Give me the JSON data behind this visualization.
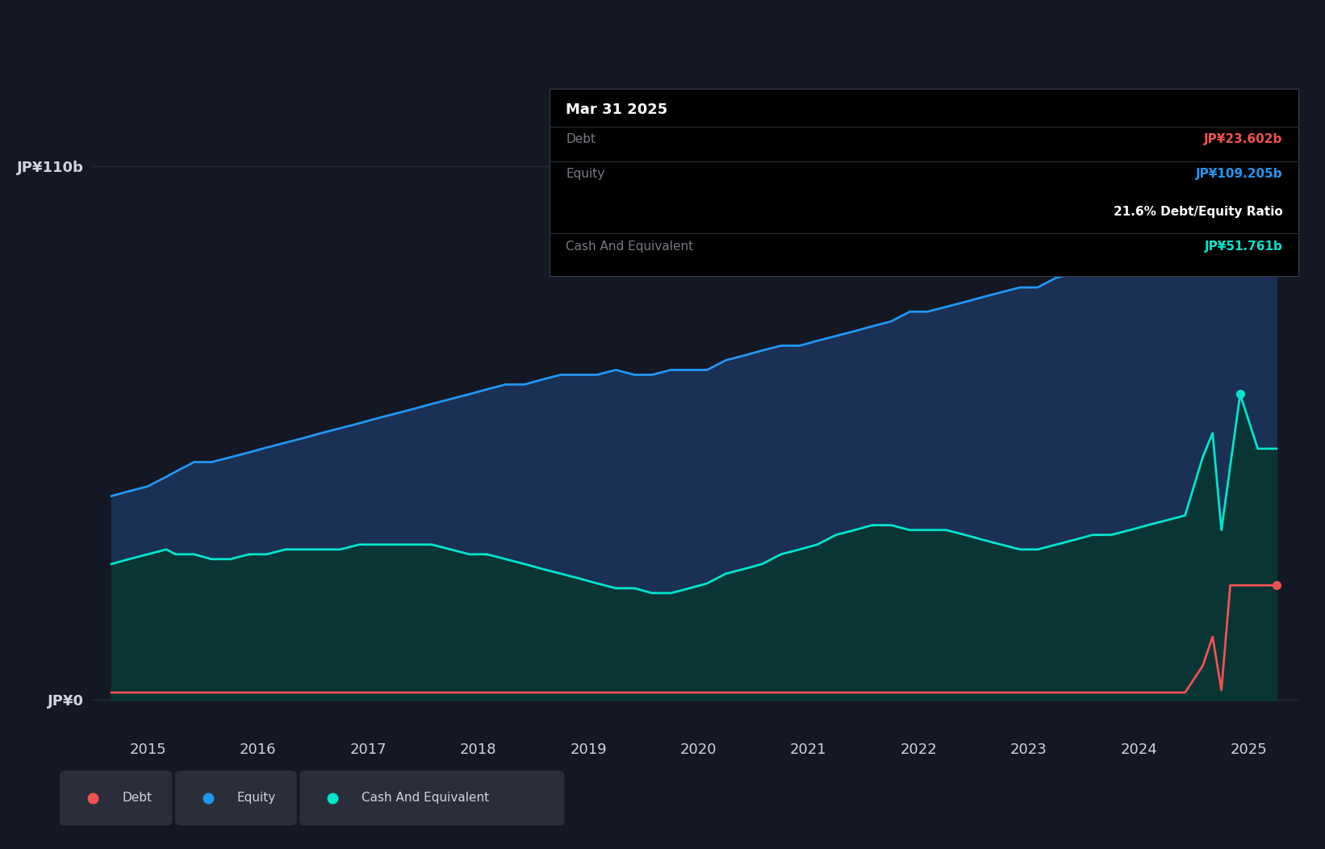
{
  "background_color": "#141824",
  "plot_bg_color": "#141824",
  "tooltip_bg": "#000000",
  "tooltip_border": "#3a3e4a",
  "debt_color": "#ef5350",
  "equity_color": "#2196f3",
  "cash_color": "#00e5cc",
  "equity_fill_color": "#1a3055",
  "cash_fill_color": "#0a3535",
  "grid_color": "#2a2e3a",
  "text_color_primary": "#d1d4dc",
  "text_color_secondary": "#787b86",
  "legend_bg": "#2a2e3a",
  "tooltip": {
    "date": "Mar 31 2025",
    "debt_label": "Debt",
    "debt_value": "JP¥23.602b",
    "equity_label": "Equity",
    "equity_value": "JP¥109.205b",
    "ratio_text": "21.6% Debt/Equity Ratio",
    "cash_label": "Cash And Equivalent",
    "cash_value": "JP¥51.761b"
  },
  "ytick_labels": [
    "JP¥0",
    "JP¥110b"
  ],
  "ytick_values": [
    0,
    110
  ],
  "xlim_start": 2014.5,
  "xlim_end": 2025.45,
  "ylim_min": -8,
  "ylim_max": 118,
  "equity_data_x": [
    2014.67,
    2014.83,
    2015.0,
    2015.17,
    2015.25,
    2015.42,
    2015.58,
    2015.75,
    2015.92,
    2016.08,
    2016.25,
    2016.42,
    2016.58,
    2016.75,
    2016.92,
    2017.08,
    2017.25,
    2017.42,
    2017.58,
    2017.75,
    2017.92,
    2018.08,
    2018.25,
    2018.42,
    2018.58,
    2018.75,
    2018.92,
    2019.08,
    2019.25,
    2019.42,
    2019.58,
    2019.75,
    2019.92,
    2020.08,
    2020.25,
    2020.42,
    2020.58,
    2020.75,
    2020.92,
    2021.08,
    2021.25,
    2021.42,
    2021.58,
    2021.75,
    2021.92,
    2022.08,
    2022.25,
    2022.42,
    2022.58,
    2022.75,
    2022.92,
    2023.08,
    2023.25,
    2023.42,
    2023.58,
    2023.75,
    2023.92,
    2024.08,
    2024.25,
    2024.42,
    2024.58,
    2024.75,
    2024.92,
    2025.08,
    2025.25
  ],
  "equity_data_y": [
    42,
    43,
    44,
    46,
    47,
    49,
    49,
    50,
    51,
    52,
    53,
    54,
    55,
    56,
    57,
    58,
    59,
    60,
    61,
    62,
    63,
    64,
    65,
    65,
    66,
    67,
    67,
    67,
    68,
    67,
    67,
    68,
    68,
    68,
    70,
    71,
    72,
    73,
    73,
    74,
    75,
    76,
    77,
    78,
    80,
    80,
    81,
    82,
    83,
    84,
    85,
    85,
    87,
    88,
    89,
    90,
    91,
    92,
    93,
    95,
    97,
    100,
    103,
    109,
    109.205
  ],
  "debt_data_x": [
    2014.67,
    2014.83,
    2015.0,
    2015.17,
    2015.25,
    2015.42,
    2015.58,
    2015.75,
    2015.92,
    2016.08,
    2016.25,
    2016.42,
    2016.58,
    2016.75,
    2016.92,
    2017.08,
    2017.25,
    2017.42,
    2017.58,
    2017.75,
    2017.92,
    2018.08,
    2018.25,
    2018.42,
    2018.58,
    2018.75,
    2018.92,
    2019.08,
    2019.25,
    2019.42,
    2019.58,
    2019.75,
    2019.92,
    2020.08,
    2020.25,
    2020.42,
    2020.58,
    2020.75,
    2020.92,
    2021.08,
    2021.25,
    2021.42,
    2021.58,
    2021.75,
    2021.92,
    2022.08,
    2022.25,
    2022.42,
    2022.58,
    2022.75,
    2022.92,
    2023.08,
    2023.25,
    2023.42,
    2023.58,
    2023.75,
    2023.92,
    2024.08,
    2024.25,
    2024.42,
    2024.58,
    2024.67,
    2024.75,
    2024.83,
    2024.92,
    2025.08,
    2025.25
  ],
  "debt_data_y": [
    1.5,
    1.5,
    1.5,
    1.5,
    1.5,
    1.5,
    1.5,
    1.5,
    1.5,
    1.5,
    1.5,
    1.5,
    1.5,
    1.5,
    1.5,
    1.5,
    1.5,
    1.5,
    1.5,
    1.5,
    1.5,
    1.5,
    1.5,
    1.5,
    1.5,
    1.5,
    1.5,
    1.5,
    1.5,
    1.5,
    1.5,
    1.5,
    1.5,
    1.5,
    1.5,
    1.5,
    1.5,
    1.5,
    1.5,
    1.5,
    1.5,
    1.5,
    1.5,
    1.5,
    1.5,
    1.5,
    1.5,
    1.5,
    1.5,
    1.5,
    1.5,
    1.5,
    1.5,
    1.5,
    1.5,
    1.5,
    1.5,
    1.5,
    1.5,
    1.5,
    7.0,
    13.0,
    2.0,
    23.602,
    23.602,
    23.602,
    23.602
  ],
  "cash_data_x": [
    2014.67,
    2014.83,
    2015.0,
    2015.17,
    2015.25,
    2015.42,
    2015.58,
    2015.75,
    2015.92,
    2016.08,
    2016.25,
    2016.42,
    2016.58,
    2016.75,
    2016.92,
    2017.08,
    2017.25,
    2017.42,
    2017.58,
    2017.75,
    2017.92,
    2018.08,
    2018.25,
    2018.42,
    2018.58,
    2018.75,
    2018.92,
    2019.08,
    2019.25,
    2019.42,
    2019.58,
    2019.75,
    2019.92,
    2020.08,
    2020.25,
    2020.42,
    2020.58,
    2020.75,
    2020.92,
    2021.08,
    2021.25,
    2021.42,
    2021.58,
    2021.75,
    2021.92,
    2022.08,
    2022.25,
    2022.42,
    2022.58,
    2022.75,
    2022.92,
    2023.08,
    2023.25,
    2023.42,
    2023.58,
    2023.75,
    2023.92,
    2024.08,
    2024.25,
    2024.42,
    2024.58,
    2024.67,
    2024.75,
    2024.92,
    2025.08,
    2025.25
  ],
  "cash_data_y": [
    28,
    29,
    30,
    31,
    30,
    30,
    29,
    29,
    30,
    30,
    31,
    31,
    31,
    31,
    32,
    32,
    32,
    32,
    32,
    31,
    30,
    30,
    29,
    28,
    27,
    26,
    25,
    24,
    23,
    23,
    22,
    22,
    23,
    24,
    26,
    27,
    28,
    30,
    31,
    32,
    34,
    35,
    36,
    36,
    35,
    35,
    35,
    34,
    33,
    32,
    31,
    31,
    32,
    33,
    34,
    34,
    35,
    36,
    37,
    38,
    50,
    55,
    35,
    63,
    51.761,
    51.761
  ]
}
